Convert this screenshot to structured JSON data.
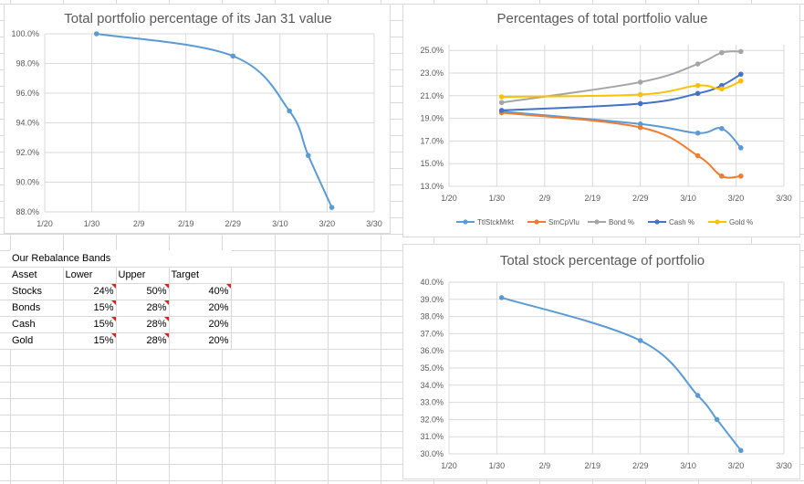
{
  "chart_data": [
    {
      "type": "line",
      "title": "Total portfolio percentage of its Jan 31 value",
      "x_axis": {
        "ticks": [
          "1/20",
          "1/30",
          "2/9",
          "2/19",
          "2/29",
          "3/10",
          "3/20",
          "3/30"
        ]
      },
      "y_axis": {
        "ticks": [
          "88.0%",
          "90.0%",
          "92.0%",
          "94.0%",
          "96.0%",
          "98.0%",
          "100.0%"
        ],
        "ylim": [
          88,
          100
        ],
        "format": "percent"
      },
      "grid": true,
      "series": [
        {
          "color": "#5b9bd5",
          "x": [
            "1/31",
            "2/29",
            "3/12",
            "3/16",
            "3/21"
          ],
          "values": [
            100.0,
            98.5,
            94.8,
            91.8,
            88.3
          ]
        }
      ]
    },
    {
      "type": "line",
      "title": "Percentages of total portfolio value",
      "x_axis": {
        "ticks": [
          "1/20",
          "1/30",
          "2/9",
          "2/19",
          "2/29",
          "3/10",
          "3/20",
          "3/30"
        ]
      },
      "y_axis": {
        "ticks": [
          "13.0%",
          "15.0%",
          "17.0%",
          "19.0%",
          "21.0%",
          "23.0%",
          "25.0%"
        ],
        "ylim": [
          13,
          25.5
        ],
        "format": "percent"
      },
      "grid": true,
      "legend": "bottom",
      "series": [
        {
          "name": "TtlStckMrkt",
          "color": "#5b9bd5",
          "x": [
            "1/31",
            "2/29",
            "3/12",
            "3/17",
            "3/21"
          ],
          "values": [
            19.6,
            18.5,
            17.7,
            18.1,
            16.4
          ]
        },
        {
          "name": "SmCpVlu",
          "color": "#ed7d31",
          "x": [
            "1/31",
            "2/29",
            "3/12",
            "3/17",
            "3/21"
          ],
          "values": [
            19.5,
            18.2,
            15.7,
            13.9,
            13.9
          ]
        },
        {
          "name": "Bond %",
          "color": "#a5a5a5",
          "x": [
            "1/31",
            "2/29",
            "3/12",
            "3/17",
            "3/21"
          ],
          "values": [
            20.4,
            22.2,
            23.8,
            24.8,
            24.9
          ]
        },
        {
          "name": "Cash %",
          "color": "#4472c4",
          "x": [
            "1/31",
            "2/29",
            "3/12",
            "3/17",
            "3/21"
          ],
          "values": [
            19.7,
            20.3,
            21.2,
            21.9,
            22.9
          ]
        },
        {
          "name": "Gold %",
          "color": "#ffc000",
          "x": [
            "1/31",
            "2/29",
            "3/12",
            "3/17",
            "3/21"
          ],
          "values": [
            20.9,
            21.1,
            21.9,
            21.6,
            22.3
          ]
        }
      ]
    },
    {
      "type": "line",
      "title": "Total stock percentage of portfolio",
      "x_axis": {
        "ticks": [
          "1/20",
          "1/30",
          "2/9",
          "2/19",
          "2/29",
          "3/10",
          "3/20",
          "3/30"
        ]
      },
      "y_axis": {
        "ticks": [
          "30.0%",
          "31.0%",
          "32.0%",
          "33.0%",
          "34.0%",
          "35.0%",
          "36.0%",
          "37.0%",
          "38.0%",
          "39.0%",
          "40.0%"
        ],
        "ylim": [
          30,
          40
        ],
        "format": "percent"
      },
      "grid": true,
      "series": [
        {
          "color": "#5b9bd5",
          "x": [
            "1/31",
            "2/29",
            "3/12",
            "3/16",
            "3/21"
          ],
          "values": [
            39.1,
            36.6,
            33.4,
            32.0,
            30.2
          ]
        }
      ]
    }
  ],
  "table": {
    "title": "Our Rebalance Bands",
    "headers": [
      "Asset",
      "Lower",
      "Upper",
      "Target"
    ],
    "rows": [
      [
        "Stocks",
        "24%",
        "50%",
        "40%"
      ],
      [
        "Bonds",
        "15%",
        "28%",
        "20%"
      ],
      [
        "Cash",
        "15%",
        "28%",
        "20%"
      ],
      [
        "Gold",
        "15%",
        "28%",
        "20%"
      ]
    ]
  }
}
